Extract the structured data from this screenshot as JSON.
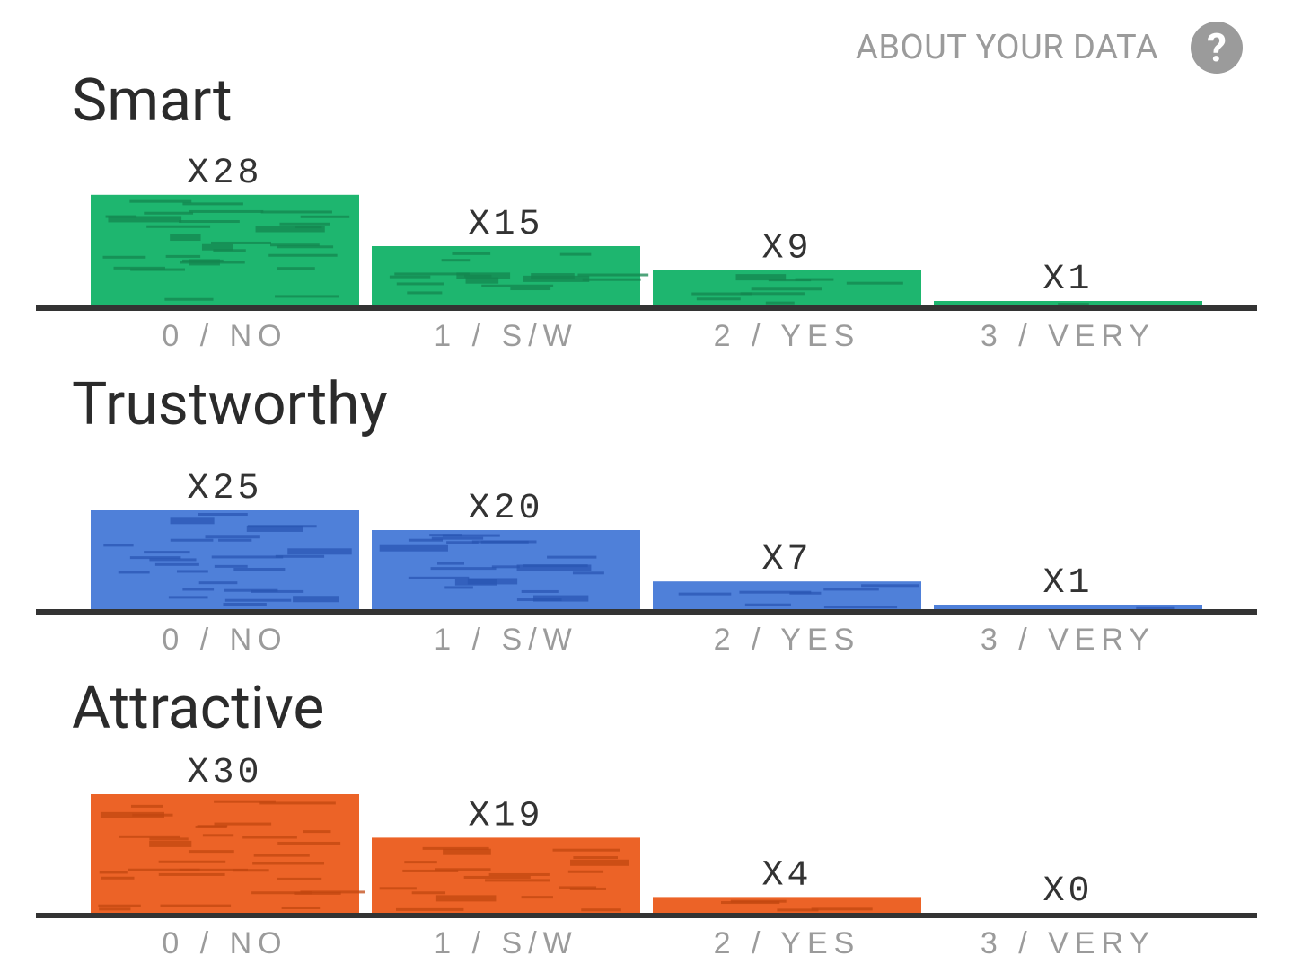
{
  "header": {
    "about_label": "ABOUT YOUR DATA",
    "help_icon": "question-mark-icon"
  },
  "chart_data": [
    {
      "type": "bar",
      "title": "Smart",
      "categories": [
        "0 / NO",
        "1 / S/W",
        "2 / YES",
        "3 / VERY"
      ],
      "values": [
        28,
        15,
        9,
        1
      ],
      "value_labels": [
        "X28",
        "X15",
        "X9",
        "X1"
      ],
      "color": "#1eb66f",
      "stripe_color": "#14864f",
      "xlabel": "",
      "ylabel": "",
      "ylim": [
        0,
        30
      ],
      "grid": false
    },
    {
      "type": "bar",
      "title": "Trustworthy",
      "categories": [
        "0 / NO",
        "1 / S/W",
        "2 / YES",
        "3 / VERY"
      ],
      "values": [
        25,
        20,
        7,
        1
      ],
      "value_labels": [
        "X25",
        "X20",
        "X7",
        "X1"
      ],
      "color": "#4f80d9",
      "stripe_color": "#2a56b3",
      "xlabel": "",
      "ylabel": "",
      "ylim": [
        0,
        30
      ],
      "grid": false
    },
    {
      "type": "bar",
      "title": "Attractive",
      "categories": [
        "0 / NO",
        "1 / S/W",
        "2 / YES",
        "3 / VERY"
      ],
      "values": [
        30,
        19,
        4,
        0
      ],
      "value_labels": [
        "X30",
        "X19",
        "X4",
        "X0"
      ],
      "color": "#ec6327",
      "stripe_color": "#c14710",
      "xlabel": "",
      "ylabel": "",
      "ylim": [
        0,
        30
      ],
      "grid": false
    }
  ]
}
